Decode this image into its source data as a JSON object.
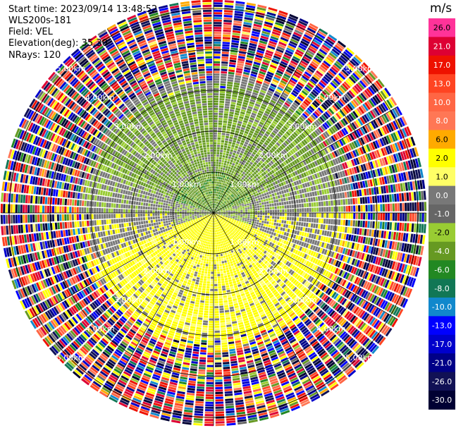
{
  "header": {
    "start_time": "Start time: 2023/09/14 13:48:52",
    "station": "WLS200s-181",
    "field": "Field: VEL",
    "elevation": "Elevation(deg): 35.30",
    "nrays": "NRays: 120"
  },
  "chart_data": {
    "type": "heatmap",
    "projection": "polar-ppi",
    "nrays": 120,
    "max_range_km": 5.2,
    "range_rings_km": [
      1.0,
      2.0,
      3.0,
      4.0,
      5.0
    ],
    "range_ring_labels": [
      "1.00km",
      "2.00km",
      "3.00km",
      "4.00km",
      "5.00km"
    ],
    "radial_spokes_deg": [
      0,
      30,
      60,
      90,
      120,
      150,
      180,
      210,
      240,
      270,
      300,
      330
    ],
    "colorbar": {
      "unit": "m/s",
      "levels": [
        "26.0",
        "21.0",
        "17.0",
        "13.0",
        "10.0",
        "8.0",
        "6.0",
        "2.0",
        "1.0",
        "0.0",
        "-1.0",
        "-2.0",
        "-4.0",
        "-6.0",
        "-8.0",
        "-10.0",
        "-13.0",
        "-17.0",
        "-21.0",
        "-26.0",
        "-30.0"
      ],
      "colors": [
        "#ff3399",
        "#dd0033",
        "#ee1100",
        "#ff4422",
        "#ff6644",
        "#ff7755",
        "#ffaa00",
        "#ffff00",
        "#ffff66",
        "#787878",
        "#666666",
        "#99cc33",
        "#669922",
        "#228822",
        "#117755",
        "#1188cc",
        "#0000ff",
        "#0000cc",
        "#000088",
        "#111155",
        "#000033"
      ]
    },
    "description_of_field": [
      {
        "range_km": [
          0.0,
          1.0
        ],
        "sector": "north half",
        "value_ms": -4.0
      },
      {
        "range_km": [
          0.0,
          1.0
        ],
        "sector": "south half",
        "value_ms": 4.0
      },
      {
        "range_km": [
          1.0,
          2.8
        ],
        "sector": "north",
        "value_ms": -2.0
      },
      {
        "range_km": [
          1.0,
          3.0
        ],
        "sector": "south",
        "value_ms": 2.0
      },
      {
        "range_km": [
          1.0,
          2.5
        ],
        "sector": "east/west",
        "value_ms": 0.0
      },
      {
        "range_km": [
          3.0,
          5.2
        ],
        "sector": "all",
        "value_ms": "noise"
      }
    ]
  }
}
